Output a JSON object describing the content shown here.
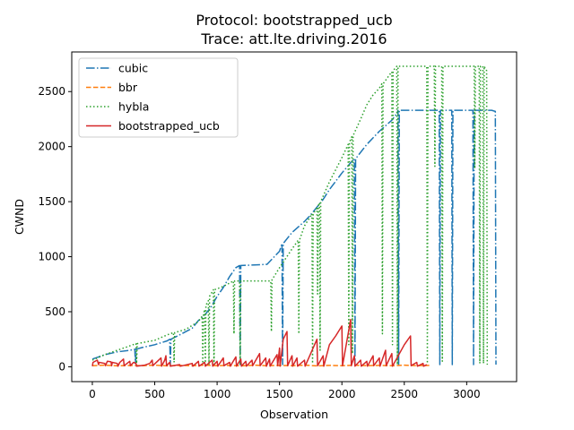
{
  "chart_data": {
    "type": "line",
    "title_line1": "Protocol: bootstrapped_ucb",
    "title_line2": "Trace: att.lte.driving.2016",
    "xlabel": "Observation",
    "ylabel": "CWND",
    "xlim": [
      -165,
      3400
    ],
    "ylim": [
      -135,
      2860
    ],
    "xticks": [
      0,
      500,
      1000,
      1500,
      2000,
      2500,
      3000
    ],
    "yticks": [
      0,
      500,
      1000,
      1500,
      2000,
      2500
    ],
    "legend_position": "upper-left",
    "series": [
      {
        "name": "cubic",
        "color": "#1f77b4",
        "style": "dashdot",
        "points": [
          [
            0,
            70
          ],
          [
            50,
            90
          ],
          [
            100,
            110
          ],
          [
            200,
            135
          ],
          [
            300,
            150
          ],
          [
            340,
            160
          ],
          [
            345,
            30
          ],
          [
            350,
            160
          ],
          [
            400,
            175
          ],
          [
            500,
            200
          ],
          [
            600,
            235
          ],
          [
            620,
            250
          ],
          [
            625,
            20
          ],
          [
            630,
            250
          ],
          [
            700,
            290
          ],
          [
            800,
            350
          ],
          [
            850,
            420
          ],
          [
            900,
            470
          ],
          [
            950,
            540
          ],
          [
            1000,
            640
          ],
          [
            1050,
            720
          ],
          [
            1100,
            820
          ],
          [
            1150,
            900
          ],
          [
            1180,
            920
          ],
          [
            1185,
            20
          ],
          [
            1190,
            920
          ],
          [
            1300,
            925
          ],
          [
            1400,
            930
          ],
          [
            1500,
            1050
          ],
          [
            1520,
            1120
          ],
          [
            1525,
            20
          ],
          [
            1530,
            1120
          ],
          [
            1600,
            1220
          ],
          [
            1700,
            1320
          ],
          [
            1750,
            1380
          ],
          [
            1800,
            1450
          ],
          [
            1850,
            1520
          ],
          [
            1900,
            1610
          ],
          [
            2000,
            1760
          ],
          [
            2060,
            1840
          ],
          [
            2100,
            1890
          ],
          [
            2105,
            20
          ],
          [
            2110,
            1890
          ],
          [
            2200,
            2020
          ],
          [
            2300,
            2140
          ],
          [
            2400,
            2240
          ],
          [
            2440,
            2300
          ],
          [
            2450,
            2330
          ],
          [
            2455,
            20
          ],
          [
            2460,
            2330
          ],
          [
            2500,
            2330
          ],
          [
            2600,
            2330
          ],
          [
            2700,
            2330
          ],
          [
            2780,
            2330
          ],
          [
            2785,
            20
          ],
          [
            2790,
            2330
          ],
          [
            2850,
            2330
          ],
          [
            2880,
            2330
          ],
          [
            2885,
            20
          ],
          [
            2890,
            2330
          ],
          [
            3000,
            2330
          ],
          [
            3050,
            2330
          ],
          [
            3055,
            20
          ],
          [
            3060,
            2330
          ],
          [
            3150,
            2330
          ],
          [
            3200,
            2330
          ],
          [
            3230,
            2320
          ],
          [
            3235,
            20
          ]
        ]
      },
      {
        "name": "bbr",
        "color": "#ff7f0e",
        "style": "dashed",
        "points": [
          [
            0,
            10
          ],
          [
            100,
            15
          ],
          [
            200,
            8
          ],
          [
            300,
            12
          ],
          [
            400,
            10
          ],
          [
            500,
            15
          ],
          [
            600,
            8
          ],
          [
            700,
            12
          ],
          [
            800,
            10
          ],
          [
            900,
            15
          ],
          [
            1000,
            10
          ],
          [
            1100,
            12
          ],
          [
            1200,
            8
          ],
          [
            1300,
            15
          ],
          [
            1400,
            10
          ],
          [
            1500,
            12
          ],
          [
            1600,
            10
          ],
          [
            1700,
            15
          ],
          [
            1800,
            8
          ],
          [
            1900,
            12
          ],
          [
            2000,
            10
          ],
          [
            2100,
            15
          ],
          [
            2200,
            10
          ],
          [
            2300,
            12
          ],
          [
            2400,
            10
          ],
          [
            2500,
            15
          ],
          [
            2600,
            10
          ],
          [
            2700,
            12
          ]
        ]
      },
      {
        "name": "hybla",
        "color": "#2ca02c",
        "style": "dotted",
        "points": [
          [
            0,
            60
          ],
          [
            100,
            110
          ],
          [
            200,
            150
          ],
          [
            300,
            190
          ],
          [
            350,
            210
          ],
          [
            355,
            30
          ],
          [
            360,
            210
          ],
          [
            500,
            240
          ],
          [
            600,
            290
          ],
          [
            650,
            310
          ],
          [
            655,
            40
          ],
          [
            660,
            310
          ],
          [
            750,
            340
          ],
          [
            850,
            410
          ],
          [
            880,
            460
          ],
          [
            885,
            30
          ],
          [
            890,
            470
          ],
          [
            900,
            520
          ],
          [
            905,
            20
          ],
          [
            910,
            560
          ],
          [
            930,
            600
          ],
          [
            935,
            20
          ],
          [
            940,
            640
          ],
          [
            970,
            700
          ],
          [
            975,
            20
          ],
          [
            980,
            700
          ],
          [
            1050,
            730
          ],
          [
            1100,
            760
          ],
          [
            1130,
            780
          ],
          [
            1135,
            300
          ],
          [
            1140,
            780
          ],
          [
            1180,
            780
          ],
          [
            1185,
            20
          ],
          [
            1190,
            780
          ],
          [
            1300,
            780
          ],
          [
            1400,
            780
          ],
          [
            1430,
            780
          ],
          [
            1435,
            320
          ],
          [
            1440,
            790
          ],
          [
            1500,
            900
          ],
          [
            1600,
            1070
          ],
          [
            1650,
            1150
          ],
          [
            1655,
            300
          ],
          [
            1660,
            1150
          ],
          [
            1700,
            1280
          ],
          [
            1750,
            1370
          ],
          [
            1760,
            1390
          ],
          [
            1765,
            30
          ],
          [
            1770,
            1390
          ],
          [
            1800,
            1440
          ],
          [
            1805,
            660
          ],
          [
            1810,
            1460
          ],
          [
            1820,
            1490
          ],
          [
            1825,
            150
          ],
          [
            1830,
            1500
          ],
          [
            1900,
            1680
          ],
          [
            2000,
            1900
          ],
          [
            2050,
            2020
          ],
          [
            2055,
            200
          ],
          [
            2060,
            2040
          ],
          [
            2080,
            2090
          ],
          [
            2085,
            120
          ],
          [
            2090,
            2100
          ],
          [
            2150,
            2250
          ],
          [
            2200,
            2380
          ],
          [
            2250,
            2470
          ],
          [
            2300,
            2530
          ],
          [
            2320,
            2570
          ],
          [
            2325,
            300
          ],
          [
            2330,
            2570
          ],
          [
            2380,
            2650
          ],
          [
            2400,
            2680
          ],
          [
            2405,
            200
          ],
          [
            2410,
            2690
          ],
          [
            2440,
            2730
          ],
          [
            2445,
            20
          ],
          [
            2450,
            2730
          ],
          [
            2500,
            2730
          ],
          [
            2600,
            2730
          ],
          [
            2680,
            2730
          ],
          [
            2685,
            30
          ],
          [
            2690,
            2730
          ],
          [
            2740,
            2730
          ],
          [
            2745,
            1820
          ],
          [
            2750,
            2730
          ],
          [
            2800,
            2730
          ],
          [
            2805,
            50
          ],
          [
            2810,
            2730
          ],
          [
            2900,
            2730
          ],
          [
            3000,
            2730
          ],
          [
            3060,
            2730
          ],
          [
            3065,
            1800
          ],
          [
            3070,
            2730
          ],
          [
            3100,
            2730
          ],
          [
            3105,
            30
          ],
          [
            3110,
            2730
          ],
          [
            3130,
            2730
          ],
          [
            3135,
            30
          ],
          [
            3140,
            2730
          ],
          [
            3160,
            2690
          ],
          [
            3165,
            20
          ]
        ]
      },
      {
        "name": "bootstrapped_ucb",
        "color": "#d62728",
        "style": "solid",
        "points": [
          [
            0,
            5
          ],
          [
            5,
            40
          ],
          [
            40,
            60
          ],
          [
            50,
            20
          ],
          [
            55,
            40
          ],
          [
            100,
            30
          ],
          [
            105,
            10
          ],
          [
            120,
            50
          ],
          [
            150,
            45
          ],
          [
            155,
            10
          ],
          [
            160,
            40
          ],
          [
            200,
            30
          ],
          [
            205,
            5
          ],
          [
            220,
            40
          ],
          [
            250,
            70
          ],
          [
            255,
            10
          ],
          [
            300,
            50
          ],
          [
            305,
            10
          ],
          [
            330,
            40
          ],
          [
            350,
            30
          ],
          [
            355,
            5
          ],
          [
            420,
            15
          ],
          [
            460,
            30
          ],
          [
            480,
            60
          ],
          [
            485,
            10
          ],
          [
            550,
            80
          ],
          [
            555,
            5
          ],
          [
            580,
            60
          ],
          [
            590,
            100
          ],
          [
            595,
            10
          ],
          [
            620,
            40
          ],
          [
            625,
            5
          ],
          [
            700,
            20
          ],
          [
            705,
            5
          ],
          [
            800,
            30
          ],
          [
            805,
            5
          ],
          [
            850,
            50
          ],
          [
            855,
            5
          ],
          [
            900,
            40
          ],
          [
            905,
            5
          ],
          [
            960,
            60
          ],
          [
            965,
            5
          ],
          [
            1000,
            50
          ],
          [
            1005,
            5
          ],
          [
            1050,
            80
          ],
          [
            1055,
            10
          ],
          [
            1100,
            40
          ],
          [
            1105,
            5
          ],
          [
            1150,
            90
          ],
          [
            1155,
            5
          ],
          [
            1190,
            70
          ],
          [
            1195,
            5
          ],
          [
            1230,
            50
          ],
          [
            1235,
            5
          ],
          [
            1280,
            60
          ],
          [
            1285,
            10
          ],
          [
            1340,
            120
          ],
          [
            1345,
            10
          ],
          [
            1390,
            80
          ],
          [
            1395,
            5
          ],
          [
            1420,
            70
          ],
          [
            1425,
            5
          ],
          [
            1480,
            110
          ],
          [
            1485,
            10
          ],
          [
            1500,
            170
          ],
          [
            1505,
            5
          ],
          [
            1530,
            250
          ],
          [
            1560,
            320
          ],
          [
            1565,
            10
          ],
          [
            1600,
            100
          ],
          [
            1605,
            5
          ],
          [
            1640,
            80
          ],
          [
            1645,
            5
          ],
          [
            1700,
            60
          ],
          [
            1705,
            5
          ],
          [
            1800,
            250
          ],
          [
            1805,
            10
          ],
          [
            1850,
            100
          ],
          [
            1855,
            5
          ],
          [
            1900,
            200
          ],
          [
            1950,
            280
          ],
          [
            2000,
            370
          ],
          [
            2005,
            10
          ],
          [
            2070,
            430
          ],
          [
            2075,
            10
          ],
          [
            2100,
            100
          ],
          [
            2105,
            5
          ],
          [
            2150,
            60
          ],
          [
            2155,
            5
          ],
          [
            2200,
            50
          ],
          [
            2205,
            5
          ],
          [
            2250,
            100
          ],
          [
            2255,
            10
          ],
          [
            2300,
            80
          ],
          [
            2305,
            5
          ],
          [
            2350,
            150
          ],
          [
            2355,
            10
          ],
          [
            2400,
            120
          ],
          [
            2405,
            5
          ],
          [
            2500,
            200
          ],
          [
            2550,
            280
          ],
          [
            2555,
            10
          ],
          [
            2600,
            40
          ],
          [
            2605,
            5
          ],
          [
            2650,
            30
          ],
          [
            2655,
            5
          ],
          [
            2680,
            20
          ]
        ]
      }
    ]
  }
}
